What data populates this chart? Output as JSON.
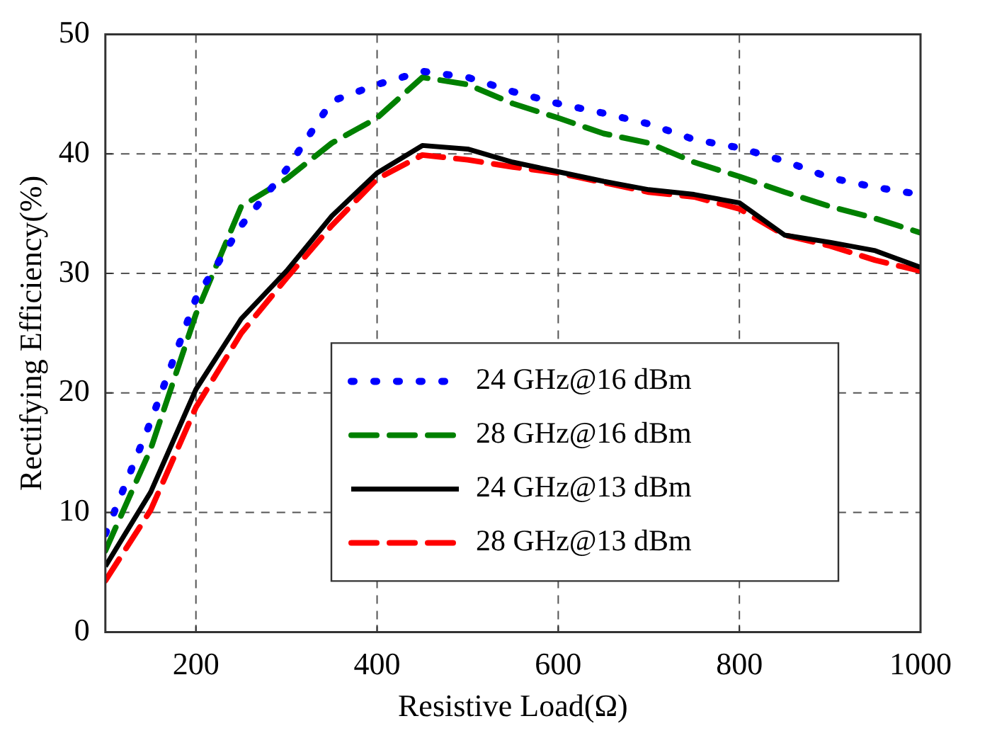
{
  "chart_data": {
    "type": "line",
    "xlabel": "Resistive Load(Ω)",
    "ylabel": "Rectifying Efficiency(%)",
    "x": [
      100,
      150,
      200,
      250,
      300,
      350,
      400,
      450,
      500,
      550,
      600,
      650,
      700,
      750,
      800,
      850,
      900,
      950,
      1000
    ],
    "series": [
      {
        "name": "24 GHz@16 dBm",
        "color": "#0000ff",
        "line_style": "dotted",
        "values": [
          8.2,
          17.6,
          27.9,
          34.0,
          38.7,
          44.4,
          45.8,
          46.9,
          46.4,
          45.2,
          44.2,
          43.4,
          42.5,
          41.2,
          40.5,
          39.4,
          38.0,
          37.2,
          36.6
        ]
      },
      {
        "name": "28 GHz@16 dBm",
        "color": "#008000",
        "line_style": "dashed",
        "values": [
          6.8,
          15.3,
          26.6,
          35.6,
          37.9,
          40.9,
          43.0,
          46.4,
          45.8,
          44.2,
          43.0,
          41.7,
          40.9,
          39.3,
          38.1,
          36.8,
          35.6,
          34.6,
          33.4
        ]
      },
      {
        "name": "24 GHz@13 dBm",
        "color": "#000000",
        "line_style": "solid",
        "values": [
          5.5,
          11.7,
          20.3,
          26.2,
          30.2,
          34.8,
          38.4,
          40.7,
          40.4,
          39.3,
          38.5,
          37.7,
          37.0,
          36.6,
          35.9,
          33.2,
          32.6,
          31.9,
          30.5
        ]
      },
      {
        "name": "28 GHz@13 dBm",
        "color": "#ff0000",
        "line_style": "dashed",
        "values": [
          4.3,
          10.2,
          18.8,
          25.0,
          29.6,
          34.0,
          37.9,
          39.9,
          39.5,
          38.9,
          38.4,
          37.6,
          36.8,
          36.4,
          35.4,
          33.2,
          32.3,
          31.1,
          30.2
        ]
      }
    ],
    "xlim": [
      100,
      1000
    ],
    "xticks": [
      200,
      400,
      600,
      800,
      1000
    ],
    "ylim": [
      0,
      50
    ],
    "yticks": [
      0,
      10,
      20,
      30,
      40,
      50
    ],
    "grid": true,
    "legend": "bottom right",
    "marker": "none"
  }
}
